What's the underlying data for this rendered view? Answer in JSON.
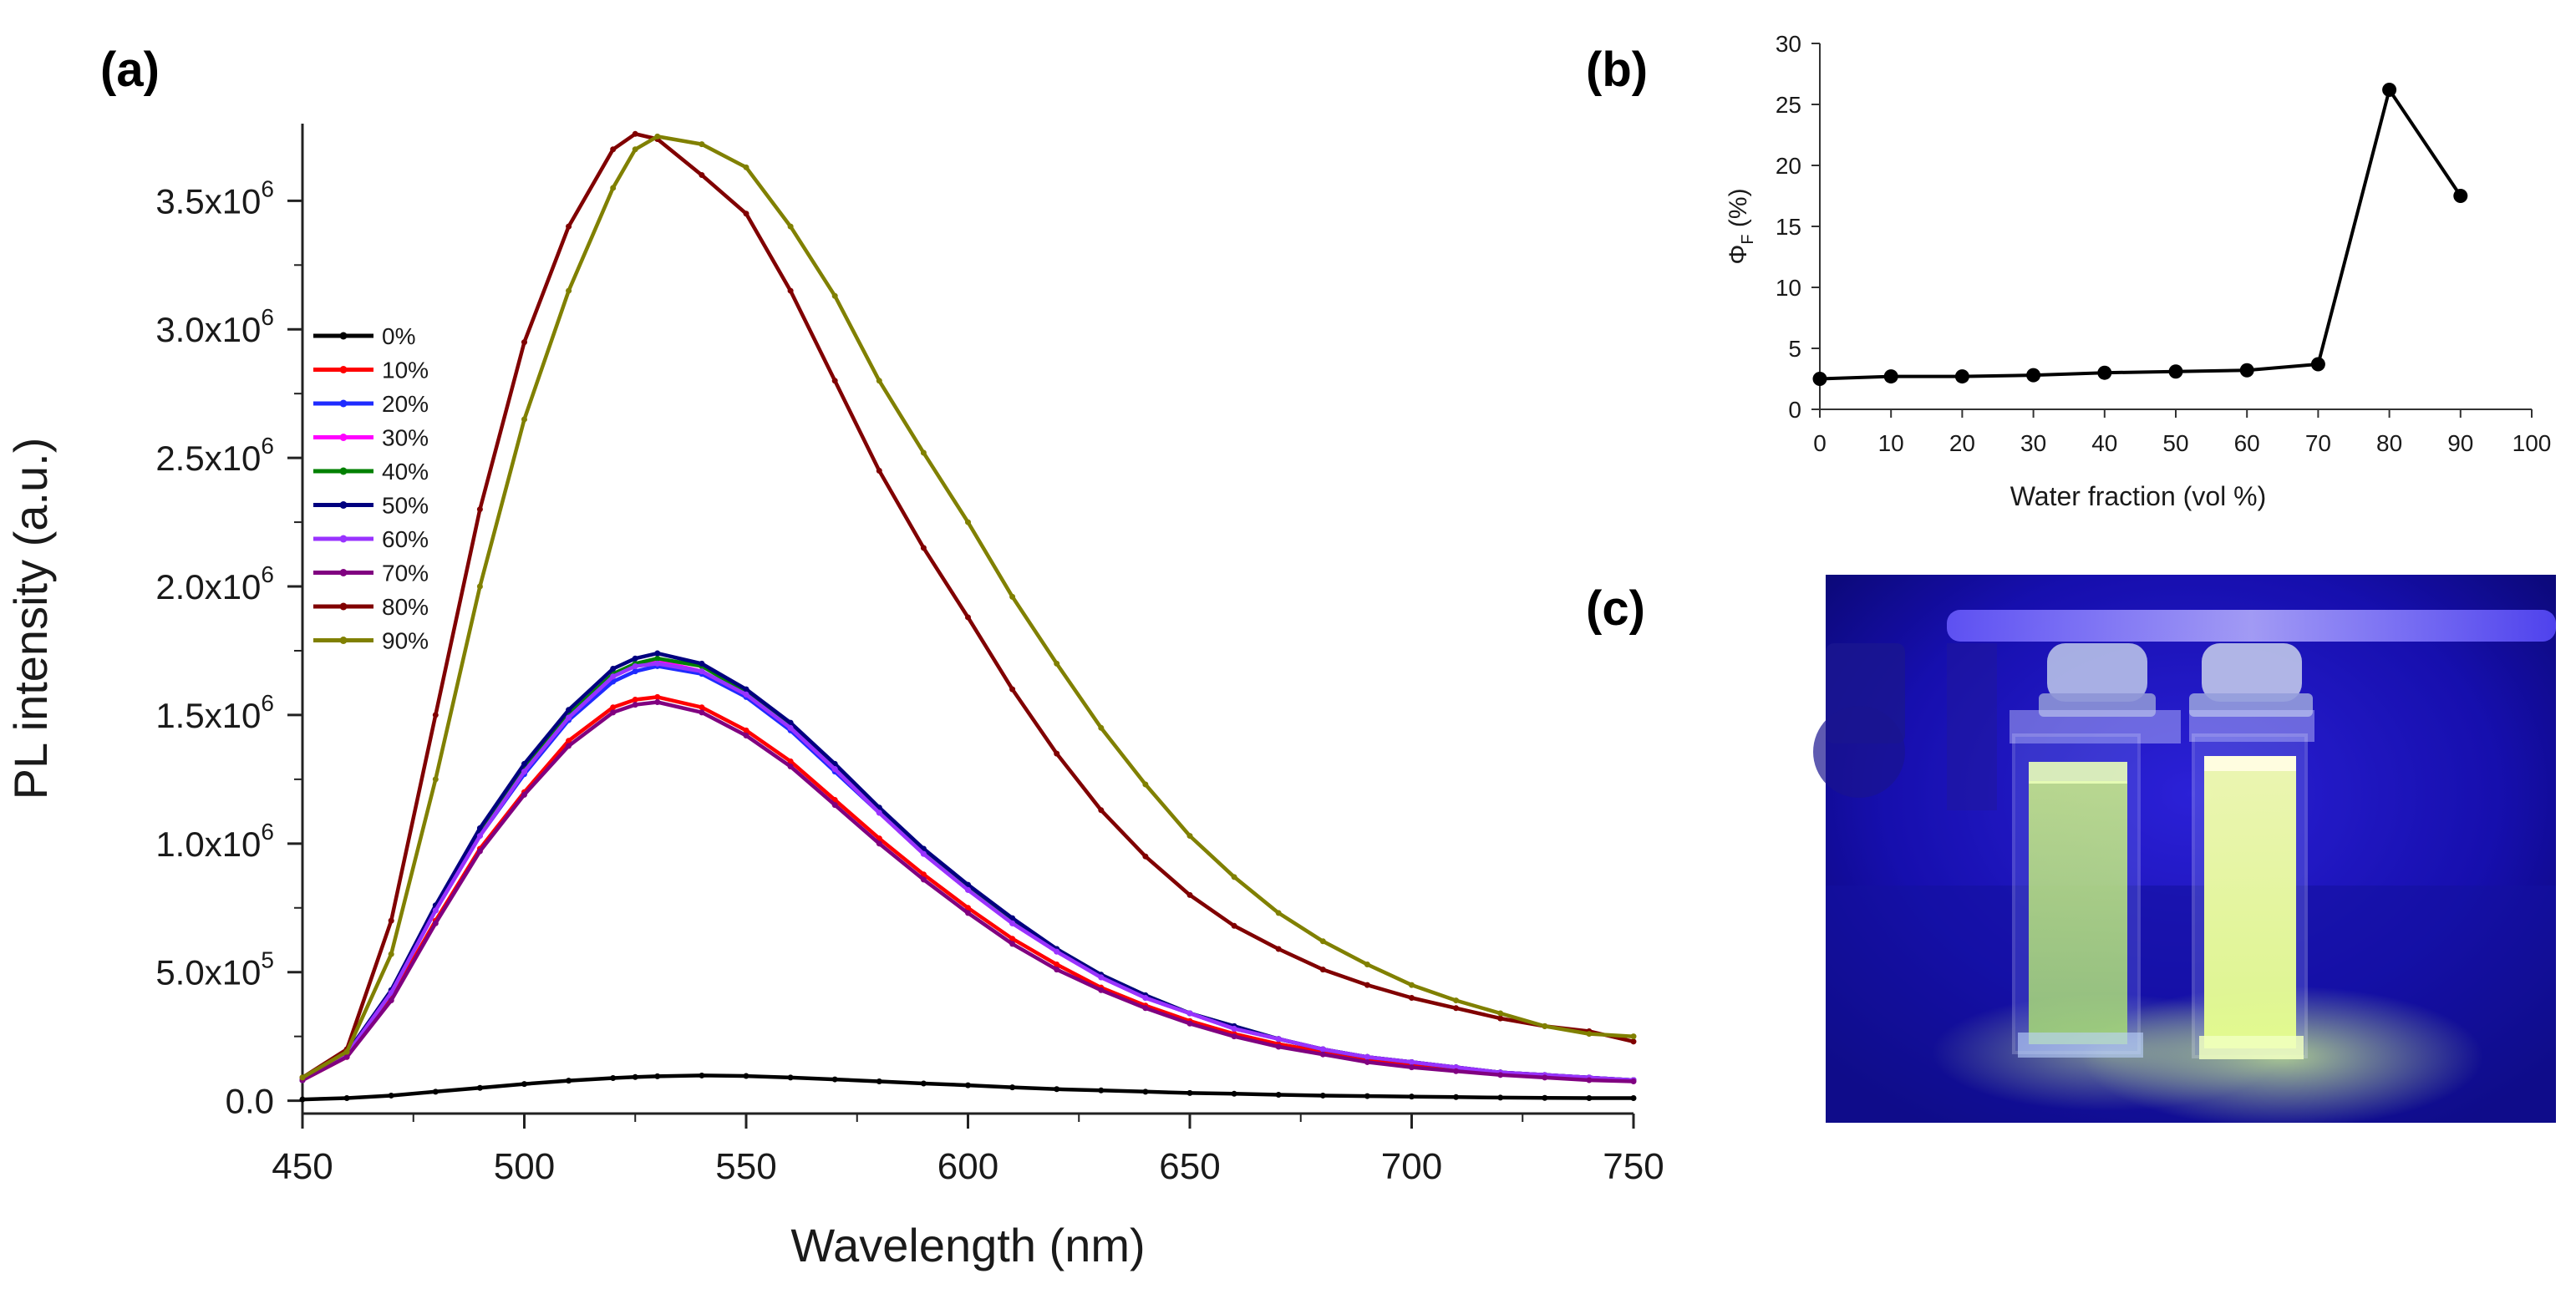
{
  "panels": {
    "a": "(a)",
    "b": "(b)",
    "c": "(c)"
  },
  "chart_data": [
    {
      "panel": "(a)",
      "type": "line",
      "xlabel": "Wavelength (nm)",
      "ylabel": "PL intensity (a.u.)",
      "xlim": [
        450,
        750
      ],
      "ylim": [
        -50000,
        3800000
      ],
      "xticks": [
        450,
        500,
        550,
        600,
        650,
        700,
        750
      ],
      "yticks": [
        {
          "value": 0,
          "label": "0.0"
        },
        {
          "value": 500000,
          "label": "5.0x10",
          "exp": "5"
        },
        {
          "value": 1000000,
          "label": "1.0x10",
          "exp": "6"
        },
        {
          "value": 1500000,
          "label": "1.5x10",
          "exp": "6"
        },
        {
          "value": 2000000,
          "label": "2.0x10",
          "exp": "6"
        },
        {
          "value": 2500000,
          "label": "2.5x10",
          "exp": "6"
        },
        {
          "value": 3000000,
          "label": "3.0x10",
          "exp": "6"
        },
        {
          "value": 3500000,
          "label": "3.5x10",
          "exp": "6"
        }
      ],
      "legend_position": "left",
      "x": [
        450,
        460,
        470,
        480,
        490,
        500,
        510,
        520,
        525,
        530,
        540,
        550,
        560,
        570,
        580,
        590,
        600,
        610,
        620,
        630,
        640,
        650,
        660,
        670,
        680,
        690,
        700,
        710,
        720,
        730,
        740,
        750
      ],
      "series": [
        {
          "name": "0%",
          "color": "#000000",
          "values": [
            5000,
            10000,
            20000,
            35000,
            50000,
            65000,
            78000,
            88000,
            92000,
            95000,
            98000,
            96000,
            90000,
            83000,
            75000,
            67000,
            60000,
            52000,
            45000,
            40000,
            35000,
            30000,
            27000,
            23000,
            20000,
            18000,
            16000,
            14000,
            12000,
            11000,
            10000,
            10000
          ]
        },
        {
          "name": "10%",
          "color": "#ff0000",
          "values": [
            80000,
            170000,
            400000,
            700000,
            980000,
            1200000,
            1400000,
            1530000,
            1560000,
            1570000,
            1530000,
            1440000,
            1320000,
            1170000,
            1020000,
            880000,
            750000,
            630000,
            530000,
            440000,
            370000,
            310000,
            260000,
            220000,
            190000,
            160000,
            140000,
            120000,
            105000,
            95000,
            85000,
            80000
          ]
        },
        {
          "name": "20%",
          "color": "#1f2bff",
          "values": [
            80000,
            180000,
            420000,
            740000,
            1030000,
            1270000,
            1480000,
            1630000,
            1670000,
            1690000,
            1660000,
            1570000,
            1440000,
            1280000,
            1120000,
            960000,
            820000,
            690000,
            580000,
            480000,
            400000,
            340000,
            280000,
            240000,
            200000,
            170000,
            150000,
            130000,
            110000,
            100000,
            90000,
            80000
          ]
        },
        {
          "name": "30%",
          "color": "#ff00ff",
          "values": [
            80000,
            180000,
            420000,
            740000,
            1030000,
            1280000,
            1490000,
            1650000,
            1690000,
            1710000,
            1670000,
            1580000,
            1450000,
            1290000,
            1120000,
            960000,
            820000,
            690000,
            580000,
            480000,
            400000,
            340000,
            280000,
            240000,
            200000,
            170000,
            150000,
            130000,
            110000,
            100000,
            90000,
            80000
          ]
        },
        {
          "name": "40%",
          "color": "#008000",
          "values": [
            80000,
            180000,
            420000,
            750000,
            1040000,
            1290000,
            1500000,
            1660000,
            1700000,
            1720000,
            1690000,
            1590000,
            1460000,
            1300000,
            1130000,
            970000,
            830000,
            700000,
            590000,
            490000,
            410000,
            340000,
            290000,
            240000,
            200000,
            170000,
            150000,
            130000,
            110000,
            100000,
            90000,
            80000
          ]
        },
        {
          "name": "50%",
          "color": "#00007f",
          "values": [
            80000,
            185000,
            430000,
            760000,
            1060000,
            1310000,
            1520000,
            1680000,
            1720000,
            1740000,
            1700000,
            1600000,
            1470000,
            1310000,
            1140000,
            980000,
            840000,
            710000,
            590000,
            490000,
            410000,
            340000,
            290000,
            240000,
            200000,
            170000,
            150000,
            130000,
            110000,
            100000,
            90000,
            80000
          ]
        },
        {
          "name": "60%",
          "color": "#9933ff",
          "values": [
            80000,
            180000,
            420000,
            740000,
            1030000,
            1280000,
            1490000,
            1650000,
            1690000,
            1700000,
            1670000,
            1580000,
            1450000,
            1290000,
            1120000,
            960000,
            820000,
            690000,
            580000,
            480000,
            400000,
            340000,
            280000,
            240000,
            200000,
            170000,
            150000,
            130000,
            110000,
            100000,
            90000,
            80000
          ]
        },
        {
          "name": "70%",
          "color": "#800080",
          "values": [
            80000,
            170000,
            390000,
            690000,
            970000,
            1190000,
            1380000,
            1510000,
            1540000,
            1550000,
            1510000,
            1420000,
            1300000,
            1150000,
            1000000,
            860000,
            730000,
            610000,
            510000,
            430000,
            360000,
            300000,
            250000,
            210000,
            180000,
            150000,
            130000,
            115000,
            100000,
            90000,
            80000,
            75000
          ]
        },
        {
          "name": "80%",
          "color": "#800000",
          "values": [
            90000,
            200000,
            700000,
            1500000,
            2300000,
            2950000,
            3400000,
            3700000,
            3760000,
            3740000,
            3600000,
            3450000,
            3150000,
            2800000,
            2450000,
            2150000,
            1880000,
            1600000,
            1350000,
            1130000,
            950000,
            800000,
            680000,
            590000,
            510000,
            450000,
            400000,
            360000,
            320000,
            290000,
            270000,
            230000
          ]
        },
        {
          "name": "90%",
          "color": "#808000",
          "values": [
            90000,
            190000,
            570000,
            1250000,
            2000000,
            2650000,
            3150000,
            3550000,
            3700000,
            3750000,
            3720000,
            3630000,
            3400000,
            3130000,
            2800000,
            2520000,
            2250000,
            1960000,
            1700000,
            1450000,
            1230000,
            1030000,
            870000,
            730000,
            620000,
            530000,
            450000,
            390000,
            340000,
            290000,
            260000,
            250000
          ]
        }
      ]
    },
    {
      "panel": "(b)",
      "type": "line",
      "xlabel": "Water fraction (vol %)",
      "ylabel_symbol": "Φ",
      "ylabel_sub": "F",
      "ylabel_unit": "(%)",
      "xlim": [
        0,
        100
      ],
      "ylim": [
        0,
        30
      ],
      "xticks": [
        0,
        10,
        20,
        30,
        40,
        50,
        60,
        70,
        80,
        90,
        100
      ],
      "yticks": [
        0,
        5,
        10,
        15,
        20,
        25,
        30
      ],
      "x": [
        0,
        10,
        20,
        30,
        40,
        50,
        60,
        70,
        80,
        90
      ],
      "values": [
        2.5,
        2.7,
        2.7,
        2.8,
        3.0,
        3.1,
        3.2,
        3.7,
        26.2,
        17.5
      ],
      "color": "#000000"
    }
  ]
}
